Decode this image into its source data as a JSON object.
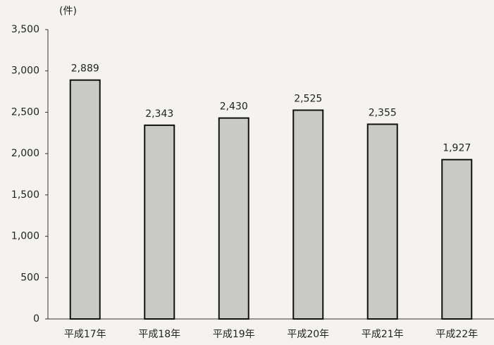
{
  "chart_data": {
    "type": "bar",
    "unit_label": "(件)",
    "categories": [
      "平成17年",
      "平成18年",
      "平成19年",
      "平成20年",
      "平成21年",
      "平成22年"
    ],
    "values": [
      2889,
      2343,
      2430,
      2525,
      2355,
      1927
    ],
    "value_labels": [
      "2,889",
      "2,343",
      "2,430",
      "2,525",
      "2,355",
      "1,927"
    ],
    "color": "#c9c9c6",
    "ylim": [
      0,
      3500
    ],
    "yticks": [
      0,
      500,
      {
        "value": 1000,
        "label": "1,000"
      },
      {
        "value": 1500,
        "label": "1,500"
      },
      {
        "value": 2000,
        "label": "2,000"
      },
      {
        "value": 2500,
        "label": "2,500"
      },
      {
        "value": 3000,
        "label": "3,000"
      },
      {
        "value": 3500,
        "label": "3,500"
      }
    ],
    "grid": false
  }
}
